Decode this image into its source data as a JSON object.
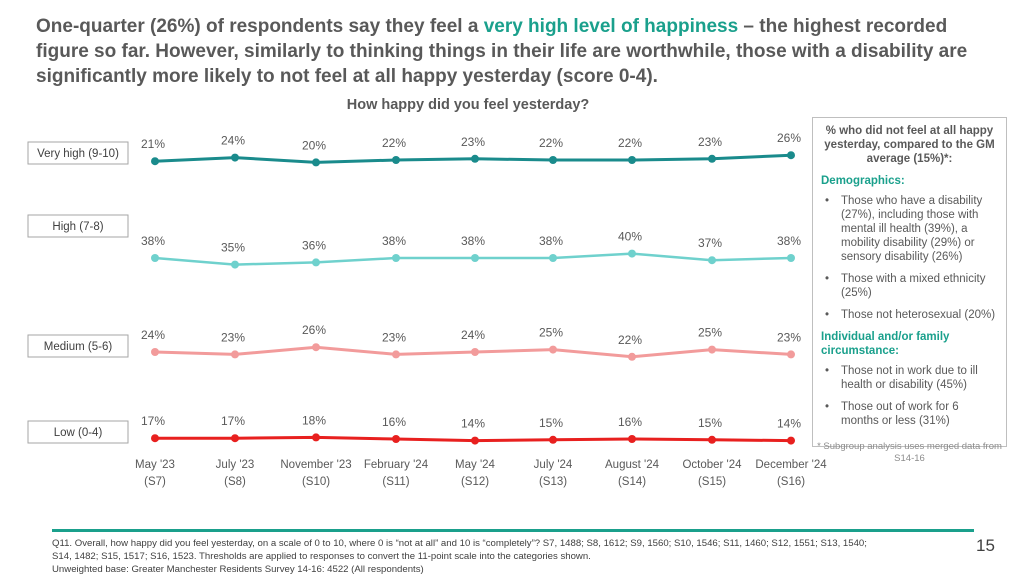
{
  "title": {
    "part1": "One-quarter (26%) of respondents say they feel a ",
    "highlight": "very high level of happiness",
    "part2": " – the highest recorded figure so far. However, similarly to thinking things in their life are worthwhile, those with a disability are significantly more likely to not feel at all happy yesterday (score 0-4)."
  },
  "colors": {
    "accent": "#1aa08c",
    "very_high": "#1a8b8c",
    "high": "#6fd1cd",
    "medium": "#f29b9b",
    "low": "#e8201f"
  },
  "chart_data": {
    "type": "line",
    "title": "How happy did you feel yesterday?",
    "categories": [
      {
        "line1": "May '23",
        "line2": "(S7)"
      },
      {
        "line1": "July '23",
        "line2": "(S8)"
      },
      {
        "line1": "November '23",
        "line2": "(S10)"
      },
      {
        "line1": "February '24",
        "line2": "(S11)"
      },
      {
        "line1": "May '24",
        "line2": "(S12)"
      },
      {
        "line1": "July '24",
        "line2": "(S13)"
      },
      {
        "line1": "August '24",
        "line2": "(S14)"
      },
      {
        "line1": "October '24",
        "line2": "(S15)"
      },
      {
        "line1": "December '24",
        "line2": "(S16)"
      }
    ],
    "series": [
      {
        "name": "Very high (9-10)",
        "color": "#1a8b8c",
        "values": [
          21,
          24,
          20,
          22,
          23,
          22,
          22,
          23,
          26
        ]
      },
      {
        "name": "High (7-8)",
        "color": "#6fd1cd",
        "values": [
          38,
          35,
          36,
          38,
          38,
          38,
          40,
          37,
          38
        ]
      },
      {
        "name": "Medium (5-6)",
        "color": "#f29b9b",
        "values": [
          24,
          23,
          26,
          23,
          24,
          25,
          22,
          25,
          23
        ]
      },
      {
        "name": "Low (0-4)",
        "color": "#e8201f",
        "values": [
          17,
          17,
          18,
          16,
          14,
          15,
          16,
          15,
          14
        ]
      }
    ],
    "value_suffix": "%"
  },
  "side": {
    "heading": "% who did not feel at all happy yesterday, compared to the GM average (15%)*:",
    "demographics_label": "Demographics:",
    "demographics": [
      "Those who have a disability (27%), including those with mental ill health (39%), a mobility disability (29%) or sensory disability (26%)",
      "Those with a mixed ethnicity (25%)",
      "Those not heterosexual (20%)"
    ],
    "circumstance_label": "Individual and/or family circumstance:",
    "circumstance": [
      "Those not in work due to ill health or disability (45%)",
      "Those out of work for 6 months or less (31%)"
    ],
    "note": "* Subgroup analysis uses merged data from S14-16"
  },
  "footer": {
    "line1": "Q11. Overall, how happy did you feel yesterday, on a scale of 0 to 10, where 0 is “not at all” and 10 is “completely”? S7, 1488; S8, 1612; S9, 1560; S10, 1546; S11, 1460; S12, 1551; S13, 1540;",
    "line2": "S14, 1482; S15, 1517; S16, 1523. Thresholds are applied to responses to convert the 11-point scale into the categories shown.",
    "line3": "Unweighted base: Greater Manchester Residents Survey 14-16: 4522 (All respondents)"
  },
  "page_number": "15"
}
